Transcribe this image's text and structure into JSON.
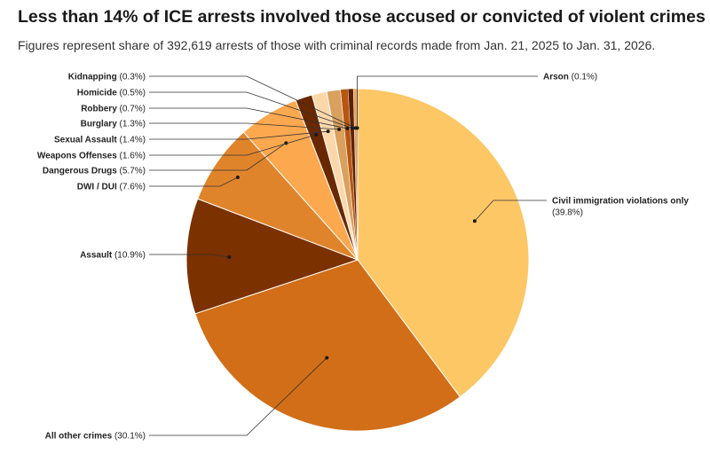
{
  "chart_data": {
    "type": "pie",
    "title": "Less than 14% of ICE arrests involved those accused or convicted of violent crimes",
    "subtitle": "Figures represent share of 392,619 arrests of those with criminal records made from Jan. 21, 2025 to Jan. 31, 2026.",
    "start": "top",
    "direction": "clockwise",
    "slices": [
      {
        "label": "Civil immigration violations only",
        "value": 39.8,
        "display": "(39.8%)",
        "color": "#fdc766"
      },
      {
        "label": "All other crimes",
        "value": 30.1,
        "display": "(30.1%)",
        "color": "#d16e17"
      },
      {
        "label": "Assault",
        "value": 10.9,
        "display": "(10.9%)",
        "color": "#7b3100"
      },
      {
        "label": "DWI / DUI",
        "value": 7.6,
        "display": "(7.6%)",
        "color": "#e0842b"
      },
      {
        "label": "Dangerous Drugs",
        "value": 5.7,
        "display": "(5.7%)",
        "color": "#fca84f"
      },
      {
        "label": "Weapons Offenses",
        "value": 1.6,
        "display": "(1.6%)",
        "color": "#6a2800"
      },
      {
        "label": "Sexual Assault",
        "value": 1.4,
        "display": "(1.4%)",
        "color": "#fdd7aa"
      },
      {
        "label": "Burglary",
        "value": 1.3,
        "display": "(1.3%)",
        "color": "#d9a05e"
      },
      {
        "label": "Robbery",
        "value": 0.7,
        "display": "(0.7%)",
        "color": "#b8560f"
      },
      {
        "label": "Homicide",
        "value": 0.5,
        "display": "(0.5%)",
        "color": "#5a2200"
      },
      {
        "label": "Kidnapping",
        "value": 0.3,
        "display": "(0.3%)",
        "color": "#f0a050"
      },
      {
        "label": "Arson",
        "value": 0.1,
        "display": "(0.1%)",
        "color": "#4a1c00"
      }
    ]
  }
}
